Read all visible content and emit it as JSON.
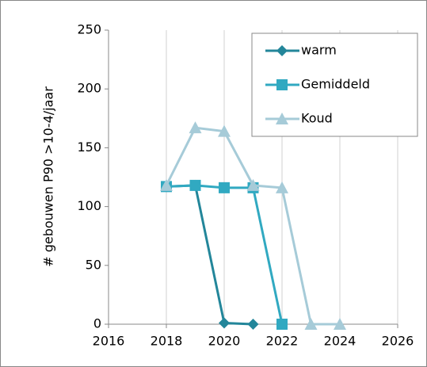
{
  "chart_data": {
    "type": "line",
    "y_label": "# gebouwen P90 >10-4/jaar",
    "xlim": [
      2016,
      2026
    ],
    "xticks": [
      2016,
      2018,
      2020,
      2022,
      2024,
      2026
    ],
    "ylim": [
      0,
      250
    ],
    "yticks": [
      0,
      50,
      100,
      150,
      200,
      250
    ],
    "grid": "x",
    "legend": "top-right",
    "series": [
      {
        "name": "warm",
        "color": "#23869a",
        "marker": "diamond",
        "x": [
          2018,
          2019,
          2020,
          2021
        ],
        "values": [
          117,
          118,
          1,
          0
        ]
      },
      {
        "name": "Gemiddeld",
        "color": "#31a9c1",
        "marker": "square",
        "x": [
          2018,
          2019,
          2020,
          2021,
          2022
        ],
        "values": [
          117,
          118,
          116,
          116,
          0
        ]
      },
      {
        "name": "Koud",
        "color": "#a6cbd8",
        "marker": "triangle",
        "x": [
          2018,
          2019,
          2020,
          2021,
          2022,
          2023,
          2024
        ],
        "values": [
          118,
          167,
          164,
          118,
          116,
          0,
          0
        ]
      }
    ]
  }
}
